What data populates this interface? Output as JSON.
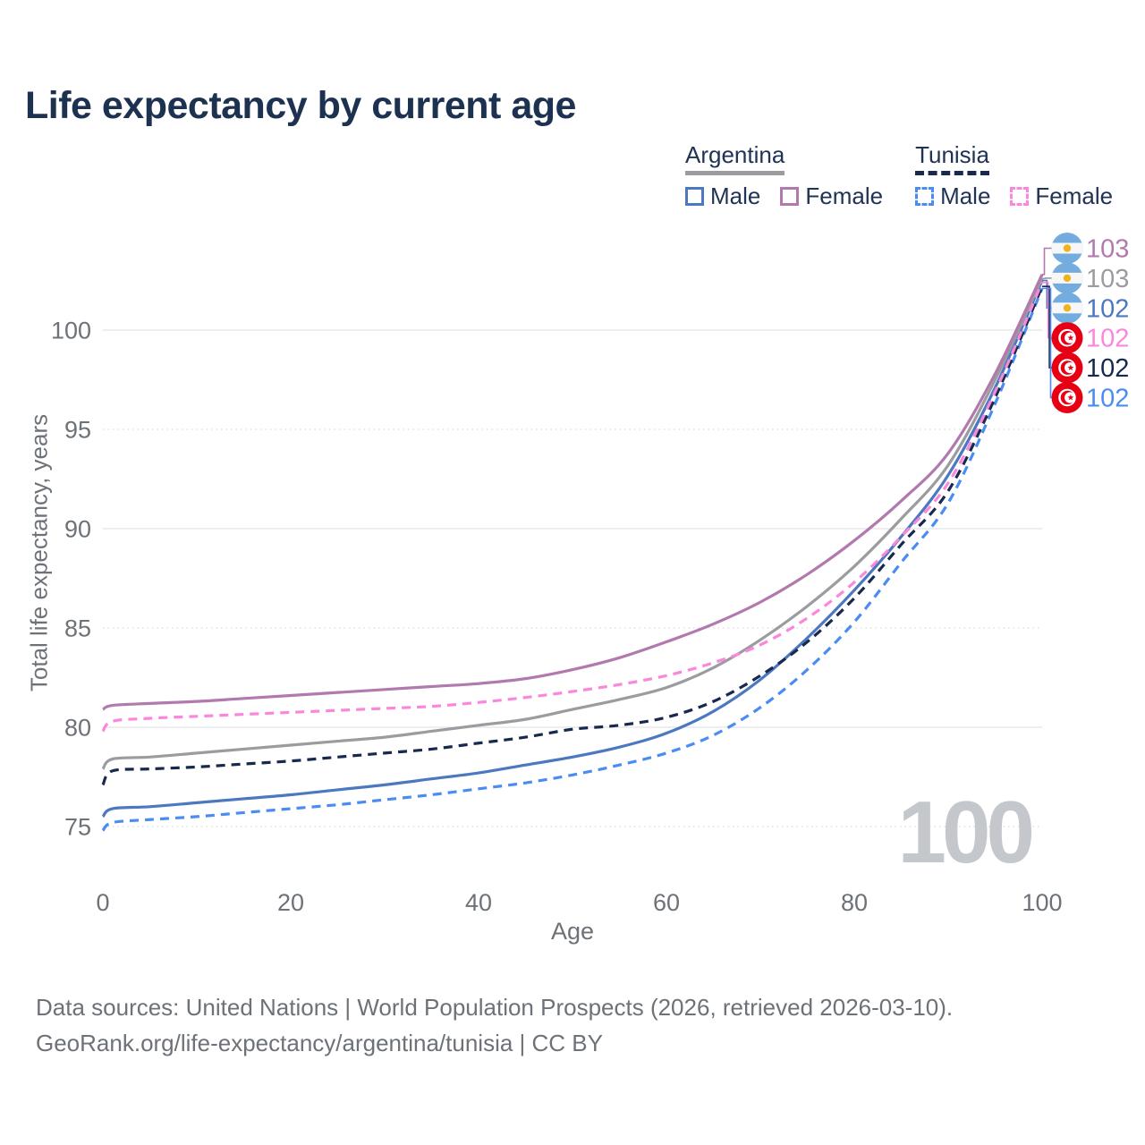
{
  "title": "Life expectancy by current age",
  "watermark": "100",
  "legend": {
    "groups": [
      {
        "label": "Argentina",
        "style": "solid",
        "underline_color": "#9a9ca0",
        "items": [
          {
            "label": "Male",
            "color": "#4c78c0",
            "dashed": false
          },
          {
            "label": "Female",
            "color": "#b279ae",
            "dashed": false
          }
        ]
      },
      {
        "label": "Tunisia",
        "style": "dashed",
        "underline_color": "#17294e",
        "items": [
          {
            "label": "Male",
            "color": "#4a8cf1",
            "dashed": true
          },
          {
            "label": "Female",
            "color": "#fb87dd",
            "dashed": true
          }
        ]
      }
    ]
  },
  "chart_data": {
    "type": "line",
    "title": "Life expectancy by current age",
    "xlabel": "Age",
    "ylabel": "Total life expectancy, years",
    "x_ticks": [
      0,
      20,
      40,
      60,
      80,
      100
    ],
    "y_ticks": [
      75,
      80,
      85,
      90,
      95,
      100
    ],
    "xlim": [
      0,
      100
    ],
    "ylim": [
      74,
      105
    ],
    "grid": "horizontal",
    "legend_position": "top-right",
    "x": [
      0,
      1,
      5,
      10,
      15,
      20,
      25,
      30,
      35,
      40,
      45,
      50,
      55,
      60,
      65,
      70,
      75,
      80,
      85,
      90,
      95,
      100
    ],
    "series": [
      {
        "name": "Argentina Female",
        "country": "Argentina",
        "sex": "Female",
        "color": "#b279ae",
        "dashed": false,
        "flag": "argentina",
        "end_label": "103",
        "values": [
          80.9,
          81.1,
          81.2,
          81.3,
          81.45,
          81.6,
          81.75,
          81.9,
          82.05,
          82.2,
          82.45,
          82.9,
          83.5,
          84.3,
          85.2,
          86.3,
          87.7,
          89.4,
          91.4,
          93.8,
          97.8,
          102.8
        ]
      },
      {
        "name": "Argentina",
        "country": "Argentina",
        "sex": "Both",
        "color": "#9a9ca0",
        "dashed": false,
        "flag": "argentina",
        "end_label": "103",
        "values": [
          77.9,
          78.4,
          78.5,
          78.7,
          78.9,
          79.1,
          79.3,
          79.5,
          79.8,
          80.1,
          80.4,
          80.9,
          81.4,
          82.0,
          83.0,
          84.4,
          86.1,
          88.1,
          90.5,
          93.2,
          97.5,
          102.6
        ]
      },
      {
        "name": "Argentina Male",
        "country": "Argentina",
        "sex": "Male",
        "color": "#4c78c0",
        "dashed": false,
        "flag": "argentina",
        "end_label": "102",
        "values": [
          75.5,
          75.9,
          76.0,
          76.2,
          76.4,
          76.6,
          76.85,
          77.1,
          77.4,
          77.7,
          78.1,
          78.5,
          79.0,
          79.7,
          80.8,
          82.4,
          84.5,
          86.9,
          89.6,
          92.7,
          97.1,
          102.5
        ]
      },
      {
        "name": "Tunisia Female",
        "country": "Tunisia",
        "sex": "Female",
        "color": "#fb87dd",
        "dashed": true,
        "flag": "tunisia",
        "end_label": "102",
        "values": [
          79.8,
          80.3,
          80.45,
          80.55,
          80.65,
          80.75,
          80.85,
          80.95,
          81.05,
          81.25,
          81.5,
          81.8,
          82.15,
          82.6,
          83.25,
          84.15,
          85.5,
          87.3,
          89.6,
          92.3,
          96.9,
          102.4
        ]
      },
      {
        "name": "Tunisia",
        "country": "Tunisia",
        "sex": "Both",
        "color": "#17294e",
        "dashed": true,
        "flag": "tunisia",
        "end_label": "102",
        "values": [
          77.1,
          77.8,
          77.9,
          78.0,
          78.15,
          78.3,
          78.5,
          78.7,
          78.9,
          79.2,
          79.5,
          79.9,
          80.1,
          80.5,
          81.3,
          82.6,
          84.3,
          86.5,
          89.2,
          91.9,
          96.6,
          102.2
        ]
      },
      {
        "name": "Tunisia Male",
        "country": "Tunisia",
        "sex": "Male",
        "color": "#4a8cf1",
        "dashed": true,
        "flag": "tunisia",
        "end_label": "102",
        "values": [
          74.8,
          75.2,
          75.35,
          75.5,
          75.7,
          75.9,
          76.1,
          76.35,
          76.6,
          76.9,
          77.2,
          77.6,
          78.1,
          78.7,
          79.6,
          81.0,
          82.9,
          85.3,
          88.3,
          91.3,
          96.3,
          102.1
        ]
      }
    ],
    "flag_colors": {
      "argentina_band": "#74acdf",
      "argentina_sun": "#f2b21c",
      "tunisia_red": "#e70013"
    }
  },
  "footer": {
    "line1": "Data sources: United Nations | World Population Prospects (2026, retrieved 2026-03-10).",
    "line2": "GeoRank.org/life-expectancy/argentina/tunisia | CC BY"
  }
}
